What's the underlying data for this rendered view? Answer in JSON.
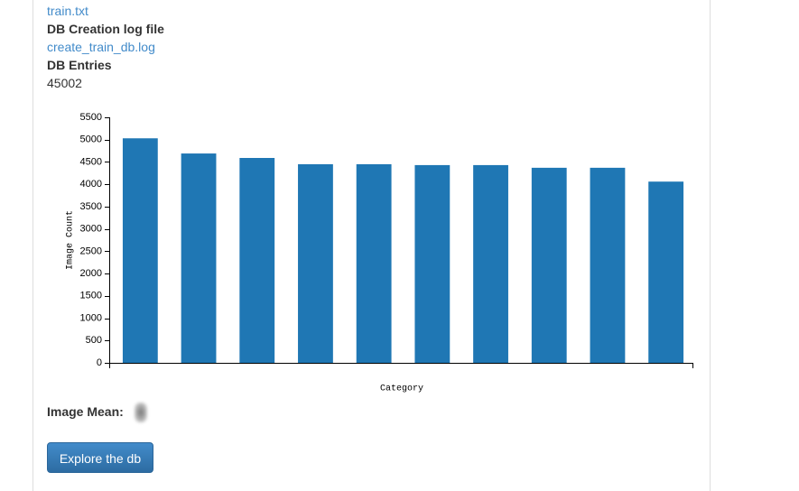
{
  "top_link": "train.txt",
  "db_log": {
    "label": "DB Creation log file",
    "value": "create_train_db.log"
  },
  "db_entries": {
    "label": "DB Entries",
    "value": "45002"
  },
  "chart_data": {
    "type": "bar",
    "y_label": "Image Count",
    "x_label": "Category",
    "categories": [
      null,
      null,
      null,
      null,
      null,
      null,
      null,
      null,
      null,
      null
    ],
    "values": [
      5030,
      4690,
      4590,
      4450,
      4450,
      4430,
      4430,
      4370,
      4370,
      4060
    ],
    "color": "#1f77b4",
    "ylim": [
      0,
      5500
    ],
    "yticks": [
      0,
      500,
      1000,
      1500,
      2000,
      2500,
      3000,
      3500,
      4000,
      4500,
      5000,
      5500
    ],
    "grid": false
  },
  "image_mean_label": "Image Mean:",
  "button": "Explore the db"
}
